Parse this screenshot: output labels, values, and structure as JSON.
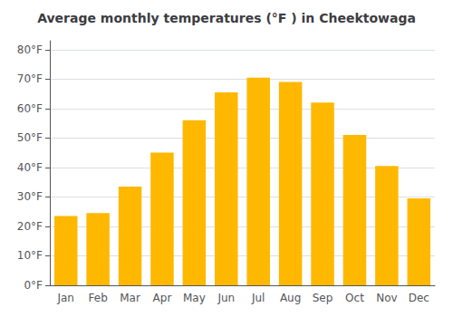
{
  "chart_data": {
    "type": "bar",
    "title": "Average monthly temperatures (°F ) in Cheektowaga",
    "categories": [
      "Jan",
      "Feb",
      "Mar",
      "Apr",
      "May",
      "Jun",
      "Jul",
      "Aug",
      "Sep",
      "Oct",
      "Nov",
      "Dec"
    ],
    "values": [
      23.5,
      24.5,
      33.5,
      45.0,
      56.0,
      65.5,
      70.5,
      69.0,
      62.0,
      51.0,
      40.5,
      29.5
    ],
    "color": "#FFB800",
    "ylim": [
      0,
      83
    ],
    "yticks": [
      {
        "value": 0,
        "label": "0°F"
      },
      {
        "value": 10,
        "label": "10°F"
      },
      {
        "value": 20,
        "label": "20°F"
      },
      {
        "value": 30,
        "label": "30°F"
      },
      {
        "value": 40,
        "label": "40°F"
      },
      {
        "value": 50,
        "label": "50°F"
      },
      {
        "value": 60,
        "label": "60°F"
      },
      {
        "value": 70,
        "label": "70°F"
      },
      {
        "value": 80,
        "label": "80°F"
      }
    ],
    "grid": true
  }
}
